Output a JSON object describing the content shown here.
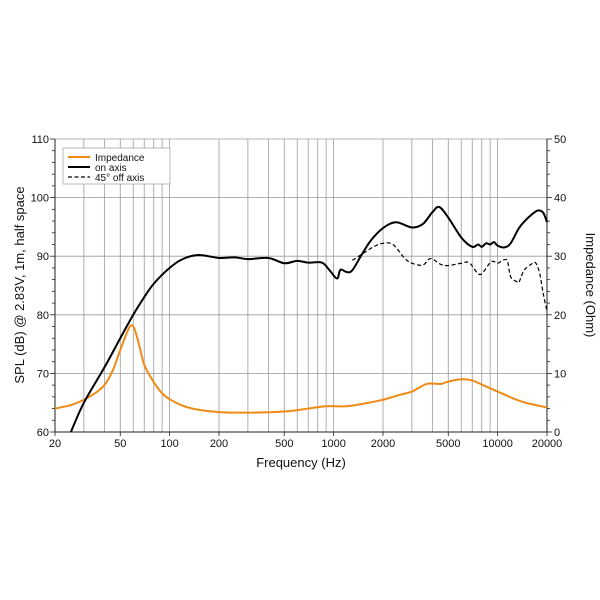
{
  "chart_data": {
    "type": "line",
    "xlabel": "Frequency (Hz)",
    "ylabel": "SPL (dB) @ 2.83V, 1m, half space",
    "y2label": "Impedance (Ohm)",
    "xscale": "log",
    "xlim": [
      20,
      20000
    ],
    "ylim": [
      60,
      110
    ],
    "y2lim": [
      0,
      50
    ],
    "grid": true,
    "legend_position": "top-left",
    "x_ticks": [
      20,
      50,
      100,
      200,
      500,
      1000,
      2000,
      5000,
      10000,
      20000
    ],
    "y_ticks": [
      60,
      70,
      80,
      90,
      100,
      110
    ],
    "y2_ticks": [
      0,
      10,
      20,
      30,
      40,
      50
    ],
    "series": [
      {
        "name": "Impedance",
        "axis": "right",
        "color": "#f08a14",
        "dash": false,
        "points": [
          [
            20,
            4
          ],
          [
            25,
            4.6
          ],
          [
            30,
            5.5
          ],
          [
            35,
            6.6
          ],
          [
            40,
            8
          ],
          [
            45,
            10.5
          ],
          [
            50,
            14
          ],
          [
            55,
            17
          ],
          [
            58,
            18.2
          ],
          [
            61,
            17.6
          ],
          [
            65,
            15
          ],
          [
            70,
            11.5
          ],
          [
            80,
            8.5
          ],
          [
            90,
            6.6
          ],
          [
            100,
            5.6
          ],
          [
            120,
            4.5
          ],
          [
            150,
            3.8
          ],
          [
            200,
            3.4
          ],
          [
            300,
            3.3
          ],
          [
            500,
            3.5
          ],
          [
            700,
            4
          ],
          [
            900,
            4.4
          ],
          [
            1200,
            4.4
          ],
          [
            1500,
            4.8
          ],
          [
            2000,
            5.5
          ],
          [
            2500,
            6.3
          ],
          [
            3000,
            6.9
          ],
          [
            3700,
            8.2
          ],
          [
            4500,
            8.2
          ],
          [
            5000,
            8.6
          ],
          [
            6000,
            9
          ],
          [
            7000,
            8.8
          ],
          [
            8000,
            8.1
          ],
          [
            10000,
            6.9
          ],
          [
            14000,
            5.2
          ],
          [
            20000,
            4.2
          ]
        ]
      },
      {
        "name": "on axis",
        "axis": "left",
        "color": "#000000",
        "dash": false,
        "points": [
          [
            25,
            60
          ],
          [
            30,
            65
          ],
          [
            40,
            71
          ],
          [
            50,
            76
          ],
          [
            60,
            80
          ],
          [
            70,
            83
          ],
          [
            80,
            85.3
          ],
          [
            100,
            88
          ],
          [
            120,
            89.5
          ],
          [
            150,
            90.2
          ],
          [
            200,
            89.7
          ],
          [
            250,
            89.8
          ],
          [
            300,
            89.5
          ],
          [
            400,
            89.7
          ],
          [
            500,
            88.8
          ],
          [
            600,
            89.2
          ],
          [
            700,
            88.9
          ],
          [
            850,
            88.9
          ],
          [
            950,
            87.5
          ],
          [
            1050,
            86.2
          ],
          [
            1100,
            87.7
          ],
          [
            1200,
            87.3
          ],
          [
            1300,
            87.6
          ],
          [
            1500,
            90.5
          ],
          [
            1700,
            92.8
          ],
          [
            2000,
            94.8
          ],
          [
            2400,
            95.8
          ],
          [
            3000,
            94.9
          ],
          [
            3500,
            95.5
          ],
          [
            4000,
            97.5
          ],
          [
            4400,
            98.4
          ],
          [
            5000,
            96.6
          ],
          [
            6000,
            93.2
          ],
          [
            7000,
            91.6
          ],
          [
            7600,
            92
          ],
          [
            8000,
            91.6
          ],
          [
            8500,
            92.2
          ],
          [
            9000,
            92
          ],
          [
            9500,
            92.4
          ],
          [
            10000,
            91.8
          ],
          [
            11000,
            91.5
          ],
          [
            12000,
            92.2
          ],
          [
            13500,
            94.8
          ],
          [
            15000,
            96.3
          ],
          [
            17000,
            97.6
          ],
          [
            18000,
            97.8
          ],
          [
            19000,
            97.4
          ],
          [
            20000,
            95.8
          ]
        ]
      },
      {
        "name": "45° off axis",
        "axis": "left",
        "color": "#000000",
        "dash": true,
        "points": [
          [
            1300,
            89.3
          ],
          [
            1500,
            90.4
          ],
          [
            1750,
            91.6
          ],
          [
            2000,
            92.2
          ],
          [
            2300,
            92
          ],
          [
            2700,
            89.7
          ],
          [
            3000,
            88.8
          ],
          [
            3500,
            88.5
          ],
          [
            3900,
            89.6
          ],
          [
            4500,
            88.6
          ],
          [
            5000,
            88.4
          ],
          [
            6000,
            88.8
          ],
          [
            6700,
            88.9
          ],
          [
            7500,
            87.2
          ],
          [
            8000,
            87
          ],
          [
            9000,
            88.9
          ],
          [
            9500,
            89.1
          ],
          [
            10000,
            88.8
          ],
          [
            11000,
            89.4
          ],
          [
            11500,
            89.1
          ],
          [
            12000,
            86.5
          ],
          [
            13000,
            85.7
          ],
          [
            13500,
            85.6
          ],
          [
            14500,
            87.6
          ],
          [
            16000,
            88.6
          ],
          [
            17000,
            88.9
          ],
          [
            18000,
            87.2
          ],
          [
            19000,
            83.5
          ],
          [
            20000,
            80.6
          ]
        ]
      }
    ]
  }
}
